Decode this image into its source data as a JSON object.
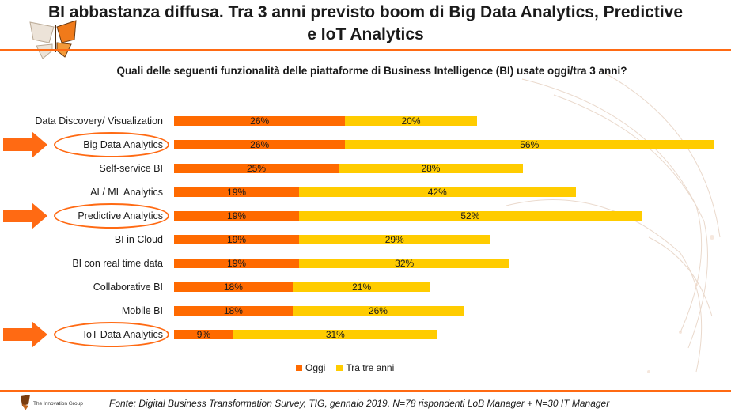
{
  "title_line1": "BI abbastanza diffusa. Tra 3 anni previsto boom di Big Data Analytics, Predictive",
  "title_line2": "e IoT Analytics",
  "chart_data": {
    "type": "bar",
    "orientation": "horizontal",
    "stacked": true,
    "title": "Quali delle seguenti funzionalità delle piattaforme di Business Intelligence (BI) usate oggi/tra 3 anni?",
    "categories": [
      "Data Discovery/ Visualization",
      "Big Data Analytics",
      "Self-service BI",
      "AI / ML Analytics",
      "Predictive Analytics",
      "BI in Cloud",
      "BI con real time data",
      "Collaborative BI",
      "Mobile BI",
      "IoT Data Analytics"
    ],
    "series": [
      {
        "name": "Oggi",
        "color": "#ff6a00",
        "values": [
          26,
          26,
          25,
          19,
          19,
          19,
          19,
          18,
          18,
          9
        ]
      },
      {
        "name": "Tra tre anni",
        "color": "#ffcc00",
        "values": [
          20,
          56,
          28,
          42,
          52,
          29,
          32,
          21,
          26,
          31
        ]
      }
    ],
    "value_labels": {
      "oggi": [
        "26%",
        "26%",
        "25%",
        "19%",
        "19%",
        "19%",
        "19%",
        "18%",
        "18%",
        "9%"
      ],
      "tre": [
        "20%",
        "56%",
        "28%",
        "42%",
        "52%",
        "29%",
        "32%",
        "21%",
        "26%",
        "31%"
      ]
    },
    "highlighted_categories": [
      "Big Data Analytics",
      "Predictive Analytics",
      "IoT Data Analytics"
    ],
    "legend_position": "bottom",
    "grid": false
  },
  "footer": {
    "source": "Fonte: Digital Business Transformation Survey, TIG, gennaio 2019, N=78 rispondenti LoB Manager + N=30 IT Manager",
    "logo_text": "The Innovation Group"
  }
}
